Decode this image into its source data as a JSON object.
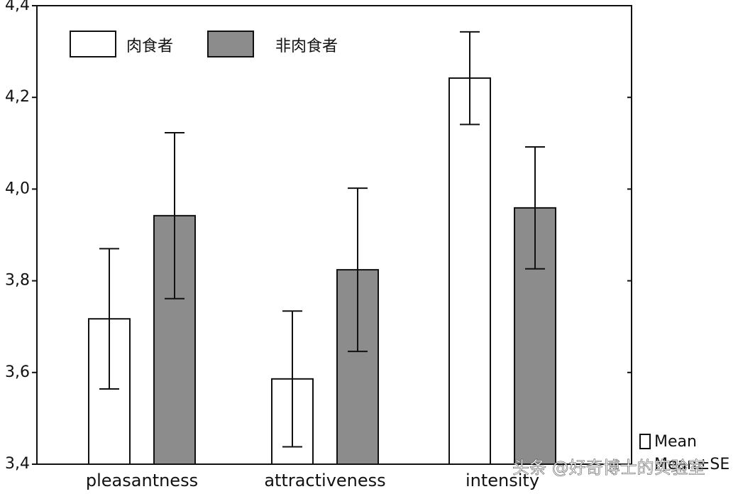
{
  "chart_data": {
    "type": "bar",
    "categories": [
      "pleasantness",
      "attractiveness",
      "intensity"
    ],
    "series": [
      {
        "name": "肉食者",
        "color": "#ffffff",
        "values": [
          3.717,
          3.586,
          4.242
        ],
        "errors": [
          0.153,
          0.148,
          0.101
        ]
      },
      {
        "name": "非肉食者",
        "color": "#8c8c8c",
        "values": [
          3.942,
          3.824,
          3.959
        ],
        "errors": [
          0.181,
          0.178,
          0.133
        ]
      }
    ],
    "ylim": [
      3.4,
      4.4
    ],
    "yticks": [
      {
        "value": 3.4,
        "label": "3,4"
      },
      {
        "value": 3.6,
        "label": "3,6"
      },
      {
        "value": 3.8,
        "label": "3,8"
      },
      {
        "value": 4.0,
        "label": "4,0"
      },
      {
        "value": 4.2,
        "label": "4,2"
      },
      {
        "value": 4.4,
        "label": "4,4"
      }
    ],
    "grid": false,
    "legend_position": "upper left",
    "notes": [
      "Mean",
      "Mean±SE"
    ],
    "watermark": "头条 @好奇博士的实验室"
  }
}
